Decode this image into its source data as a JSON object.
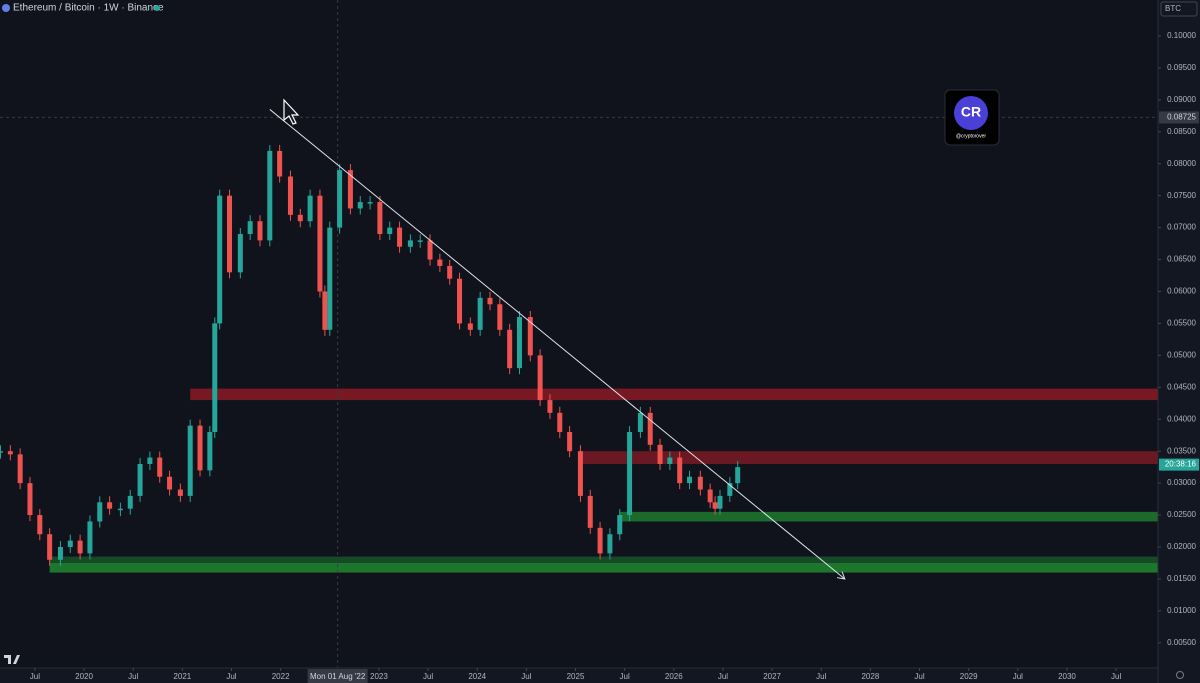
{
  "header": {
    "title": "Ethereum / Bitcoin · 1W · Binance",
    "currency_button": "BTC"
  },
  "watermark": {
    "logo": "CR",
    "handle": "@cryptorover"
  },
  "chart_data": {
    "type": "candlestick-close",
    "series": [
      {
        "name": "ETH/BTC",
        "up_color": "#26a69a",
        "down_color": "#ef5350",
        "x": [
          2019.15,
          2019.25,
          2019.35,
          2019.45,
          2019.55,
          2019.65,
          2019.76,
          2019.86,
          2019.96,
          2020.06,
          2020.16,
          2020.26,
          2020.37,
          2020.47,
          2020.57,
          2020.67,
          2020.77,
          2020.87,
          2020.98,
          2021.08,
          2021.18,
          2021.28,
          2021.33,
          2021.38,
          2021.48,
          2021.59,
          2021.69,
          2021.79,
          2021.89,
          2021.99,
          2022.1,
          2022.2,
          2022.3,
          2022.4,
          2022.45,
          2022.5,
          2022.6,
          2022.71,
          2022.81,
          2022.91,
          2023.01,
          2023.11,
          2023.21,
          2023.32,
          2023.42,
          2023.52,
          2023.62,
          2023.72,
          2023.82,
          2023.93,
          2024.03,
          2024.13,
          2024.23,
          2024.33,
          2024.43,
          2024.54,
          2024.64,
          2024.74,
          2024.84,
          2024.94,
          2025.05,
          2025.15,
          2025.25,
          2025.35,
          2025.45,
          2025.55,
          2025.66,
          2025.76,
          2025.86,
          2025.96,
          2026.06,
          2026.16,
          2026.27,
          2026.37,
          2026.42,
          2026.47,
          2026.57,
          2026.65
        ],
        "values": [
          0.035,
          0.0345,
          0.03,
          0.025,
          0.022,
          0.018,
          0.02,
          0.021,
          0.019,
          0.024,
          0.027,
          0.026,
          0.026,
          0.028,
          0.033,
          0.034,
          0.031,
          0.029,
          0.028,
          0.039,
          0.032,
          0.038,
          0.055,
          0.075,
          0.063,
          0.069,
          0.071,
          0.068,
          0.082,
          0.078,
          0.072,
          0.071,
          0.075,
          0.06,
          0.054,
          0.07,
          0.079,
          0.073,
          0.074,
          0.074,
          0.069,
          0.07,
          0.067,
          0.068,
          0.068,
          0.065,
          0.064,
          0.062,
          0.055,
          0.054,
          0.059,
          0.058,
          0.054,
          0.048,
          0.056,
          0.05,
          0.043,
          0.041,
          0.038,
          0.035,
          0.028,
          0.023,
          0.019,
          0.022,
          0.025,
          0.038,
          0.041,
          0.036,
          0.033,
          0.034,
          0.03,
          0.031,
          0.029,
          0.027,
          0.026,
          0.028,
          0.03,
          0.0325
        ]
      }
    ],
    "zones": [
      {
        "x_from": 2021.08,
        "low": 0.043,
        "high": 0.0448,
        "color": "#8b1a24"
      },
      {
        "x_from": 2025.05,
        "low": 0.033,
        "high": 0.035,
        "color": "#7a1a22"
      },
      {
        "x_from": 2025.45,
        "low": 0.024,
        "high": 0.0255,
        "color": "#1f7a2e"
      },
      {
        "x_from": 2019.65,
        "low": 0.016,
        "high": 0.0175,
        "color": "#1f8a30"
      },
      {
        "x_from": 2019.65,
        "low": 0.0175,
        "high": 0.0185,
        "color": "#16552a"
      }
    ],
    "trendline": {
      "x": [
        2021.89,
        2027.74
      ],
      "y": [
        0.0885,
        0.015
      ],
      "color": "#e0e3eb"
    },
    "crosshair": {
      "x": 2022.58,
      "x_label": "Mon 01 Aug '22",
      "y": 0.08725,
      "y_label": "0.08725"
    },
    "last_price_label": {
      "value": 0.0329,
      "label": "20:38:16"
    },
    "xlim": [
      2019.145,
      2030.926
    ],
    "ylim": [
      0.00106,
      0.10563
    ],
    "xticks": [
      {
        "value": 2019.5,
        "label": "Jul"
      },
      {
        "value": 2020,
        "label": "2020"
      },
      {
        "value": 2020.5,
        "label": "Jul"
      },
      {
        "value": 2021,
        "label": "2021"
      },
      {
        "value": 2021.5,
        "label": "Jul"
      },
      {
        "value": 2022,
        "label": "2022"
      },
      {
        "value": 2023,
        "label": "2023"
      },
      {
        "value": 2023.5,
        "label": "Jul"
      },
      {
        "value": 2024,
        "label": "2024"
      },
      {
        "value": 2024.5,
        "label": "Jul"
      },
      {
        "value": 2025,
        "label": "2025"
      },
      {
        "value": 2025.5,
        "label": "Jul"
      },
      {
        "value": 2026,
        "label": "2026"
      },
      {
        "value": 2026.5,
        "label": "Jul"
      },
      {
        "value": 2027,
        "label": "2027"
      },
      {
        "value": 2027.5,
        "label": "Jul"
      },
      {
        "value": 2028,
        "label": "2028"
      },
      {
        "value": 2028.5,
        "label": "Jul"
      },
      {
        "value": 2029,
        "label": "2029"
      },
      {
        "value": 2029.5,
        "label": "Jul"
      },
      {
        "value": 2030,
        "label": "2030"
      },
      {
        "value": 2030.5,
        "label": "Jul"
      }
    ],
    "yticks": [
      {
        "value": 0.1,
        "label": "0.10000"
      },
      {
        "value": 0.095,
        "label": "0.09500"
      },
      {
        "value": 0.09,
        "label": "0.09000"
      },
      {
        "value": 0.085,
        "label": "0.08500"
      },
      {
        "value": 0.08,
        "label": "0.08000"
      },
      {
        "value": 0.075,
        "label": "0.07500"
      },
      {
        "value": 0.07,
        "label": "0.07000"
      },
      {
        "value": 0.065,
        "label": "0.06500"
      },
      {
        "value": 0.06,
        "label": "0.06000"
      },
      {
        "value": 0.055,
        "label": "0.05500"
      },
      {
        "value": 0.05,
        "label": "0.05000"
      },
      {
        "value": 0.045,
        "label": "0.04500"
      },
      {
        "value": 0.04,
        "label": "0.04000"
      },
      {
        "value": 0.035,
        "label": "0.03500"
      },
      {
        "value": 0.03,
        "label": "0.03000"
      },
      {
        "value": 0.025,
        "label": "0.02500"
      },
      {
        "value": 0.02,
        "label": "0.02000"
      },
      {
        "value": 0.015,
        "label": "0.01500"
      },
      {
        "value": 0.01,
        "label": "0.01000"
      },
      {
        "value": 0.005,
        "label": "0.00500"
      }
    ],
    "grid": false
  }
}
